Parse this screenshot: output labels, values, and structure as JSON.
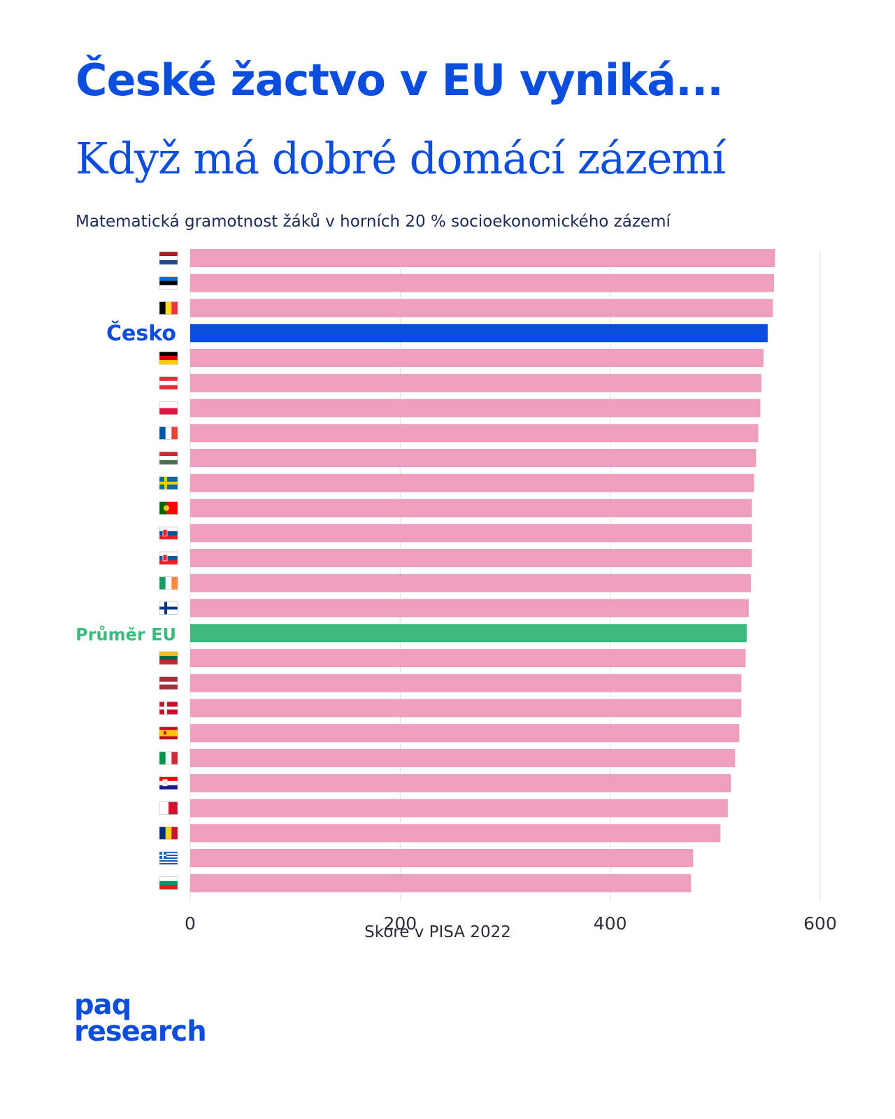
{
  "header": {
    "title": "České žactvo v EU vyniká...",
    "subtitle": "Když má dobré domácí zázemí",
    "description": "Matematická gramotnost žáků v horních 20 % socioekonomického zázemí"
  },
  "colors": {
    "default": "#ee9fbd",
    "highlight": "#0b4ddf",
    "average": "#3db97e",
    "title": "#0b4ddf"
  },
  "chart_data": {
    "type": "bar",
    "orientation": "horizontal",
    "xlabel": "Skóre v PISA 2022",
    "xlim": [
      0,
      600
    ],
    "xticks": [
      0,
      200,
      400,
      600
    ],
    "grid": true,
    "categories": [
      {
        "flag": "netherlands",
        "label": "",
        "value": 557
      },
      {
        "flag": "estonia",
        "label": "",
        "value": 556
      },
      {
        "flag": "belgium",
        "label": "",
        "value": 555
      },
      {
        "flag": "",
        "label": "Česko",
        "value": 550,
        "highlight": "highlight"
      },
      {
        "flag": "germany",
        "label": "",
        "value": 546
      },
      {
        "flag": "austria",
        "label": "",
        "value": 544
      },
      {
        "flag": "poland",
        "label": "",
        "value": 543
      },
      {
        "flag": "france",
        "label": "",
        "value": 541
      },
      {
        "flag": "hungary",
        "label": "",
        "value": 539
      },
      {
        "flag": "sweden",
        "label": "",
        "value": 537
      },
      {
        "flag": "portugal",
        "label": "",
        "value": 535
      },
      {
        "flag": "slovakia",
        "label": "",
        "value": 535
      },
      {
        "flag": "slovenia",
        "label": "",
        "value": 535
      },
      {
        "flag": "ireland",
        "label": "",
        "value": 534
      },
      {
        "flag": "finland",
        "label": "",
        "value": 532
      },
      {
        "flag": "",
        "label": "Průměr EU",
        "value": 530,
        "highlight": "average"
      },
      {
        "flag": "lithuania",
        "label": "",
        "value": 529
      },
      {
        "flag": "latvia",
        "label": "",
        "value": 525
      },
      {
        "flag": "denmark",
        "label": "",
        "value": 525
      },
      {
        "flag": "spain",
        "label": "",
        "value": 523
      },
      {
        "flag": "italy",
        "label": "",
        "value": 519
      },
      {
        "flag": "croatia",
        "label": "",
        "value": 515
      },
      {
        "flag": "malta",
        "label": "",
        "value": 512
      },
      {
        "flag": "romania",
        "label": "",
        "value": 505
      },
      {
        "flag": "greece",
        "label": "",
        "value": 479
      },
      {
        "flag": "bulgaria",
        "label": "",
        "value": 477
      }
    ]
  },
  "logo": {
    "line1": "paq",
    "line2": "research"
  }
}
